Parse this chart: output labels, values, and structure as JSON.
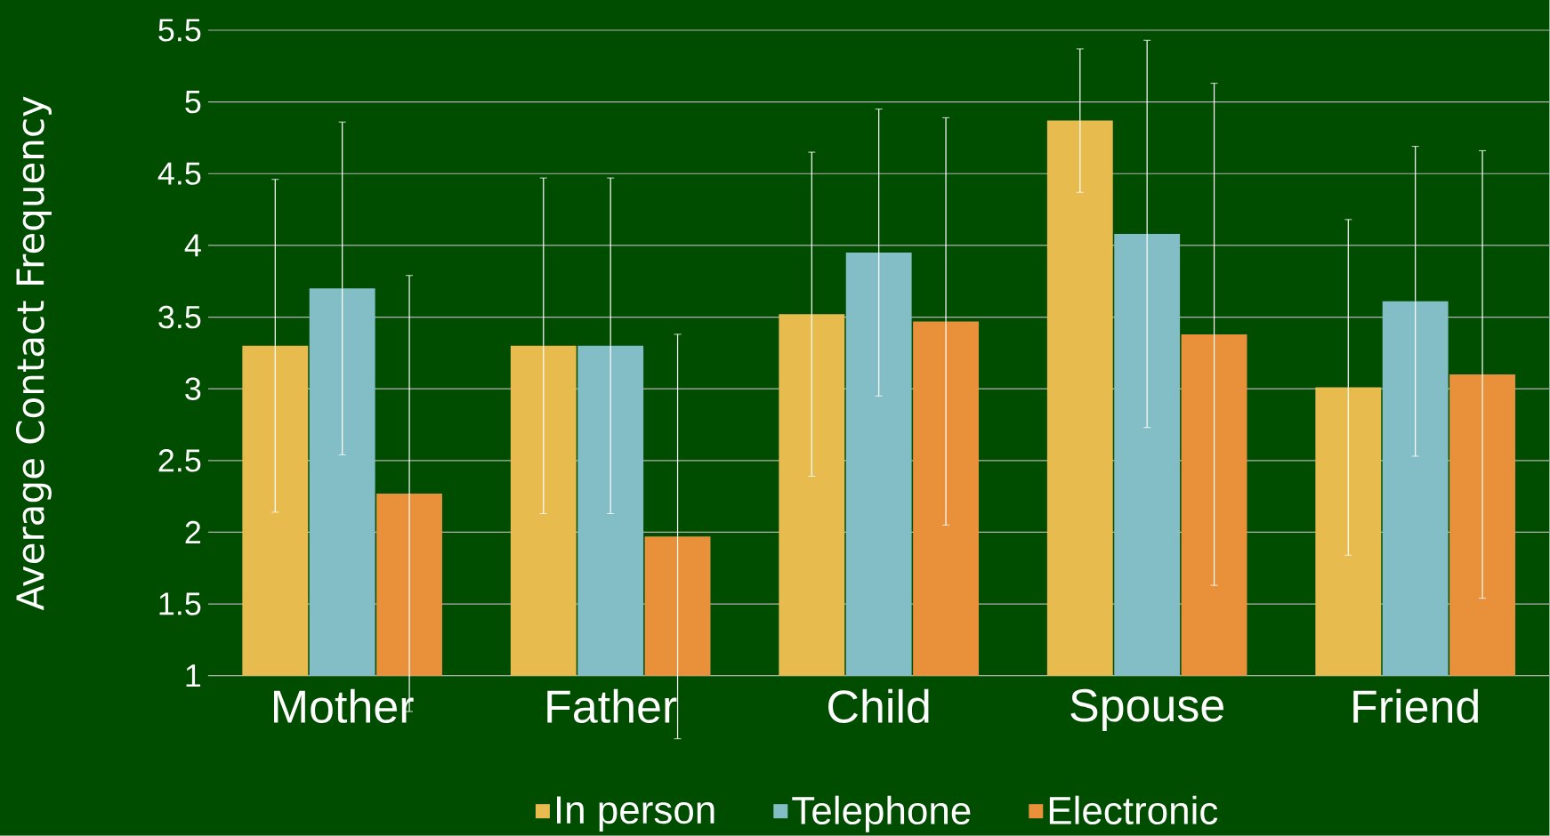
{
  "chart_data": {
    "type": "bar",
    "ylabel": "Average Contact Frequency",
    "categories": [
      "Mother",
      "Father",
      "Child",
      "Spouse",
      "Friend"
    ],
    "series": [
      {
        "name": "In person",
        "color": "#e8bb4f",
        "values": [
          3.3,
          3.3,
          3.52,
          4.87,
          3.01
        ],
        "errors": [
          1.16,
          1.17,
          1.13,
          0.5,
          1.17
        ]
      },
      {
        "name": "Telephone",
        "color": "#83bdc6",
        "values": [
          3.7,
          3.3,
          3.95,
          4.08,
          3.61
        ],
        "errors": [
          1.16,
          1.17,
          1.0,
          1.35,
          1.08
        ]
      },
      {
        "name": "Electronic",
        "color": "#e8903a",
        "values": [
          2.27,
          1.97,
          3.47,
          3.38,
          3.1
        ],
        "errors": [
          1.52,
          1.41,
          1.42,
          1.75,
          1.56
        ]
      }
    ],
    "ylim": [
      1,
      5.5
    ],
    "yticks": [
      1,
      1.5,
      2,
      2.5,
      3,
      3.5,
      4,
      4.5,
      5,
      5.5
    ],
    "grid": "y",
    "legend": "bottom"
  }
}
